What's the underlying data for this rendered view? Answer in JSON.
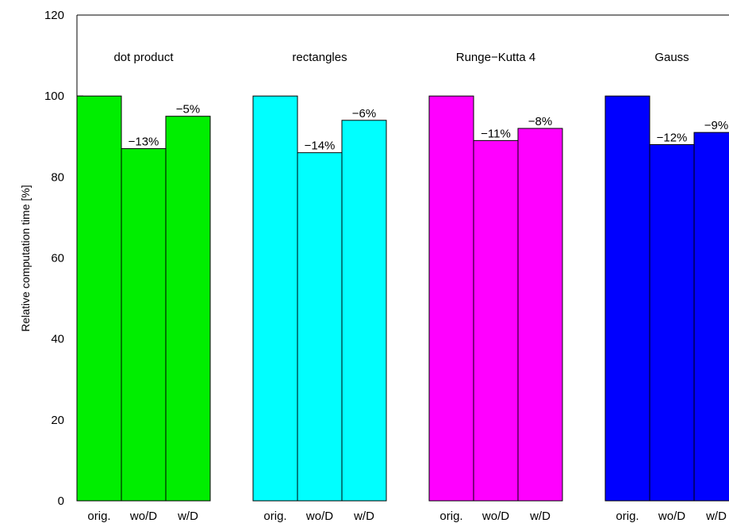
{
  "chart_data": {
    "type": "bar",
    "title": "",
    "xlabel": "",
    "ylabel": "Relative computation time [%]",
    "ylim": [
      0,
      120
    ],
    "yticks": [
      0,
      20,
      40,
      60,
      80,
      100,
      120
    ],
    "grid": false,
    "groups": [
      {
        "name": "dot product",
        "color": "#00ee00",
        "bars": [
          {
            "label": "orig.",
            "value": 100,
            "annotation": ""
          },
          {
            "label": "wo/D",
            "value": 87,
            "annotation": "−13%"
          },
          {
            "label": "w/D",
            "value": 95,
            "annotation": "−5%"
          }
        ]
      },
      {
        "name": "rectangles",
        "color": "#00ffff",
        "bars": [
          {
            "label": "orig.",
            "value": 100,
            "annotation": ""
          },
          {
            "label": "wo/D",
            "value": 86,
            "annotation": "−14%"
          },
          {
            "label": "w/D",
            "value": 94,
            "annotation": "−6%"
          }
        ]
      },
      {
        "name": "Runge−Kutta 4",
        "color": "#ff00ff",
        "bars": [
          {
            "label": "orig.",
            "value": 100,
            "annotation": ""
          },
          {
            "label": "wo/D",
            "value": 89,
            "annotation": "−11%"
          },
          {
            "label": "w/D",
            "value": 92,
            "annotation": "−8%"
          }
        ]
      },
      {
        "name": "Gauss",
        "color": "#0000ff",
        "bars": [
          {
            "label": "orig.",
            "value": 100,
            "annotation": ""
          },
          {
            "label": "wo/D",
            "value": 88,
            "annotation": "−12%"
          },
          {
            "label": "w/D",
            "value": 91,
            "annotation": "−9%"
          }
        ]
      }
    ]
  }
}
